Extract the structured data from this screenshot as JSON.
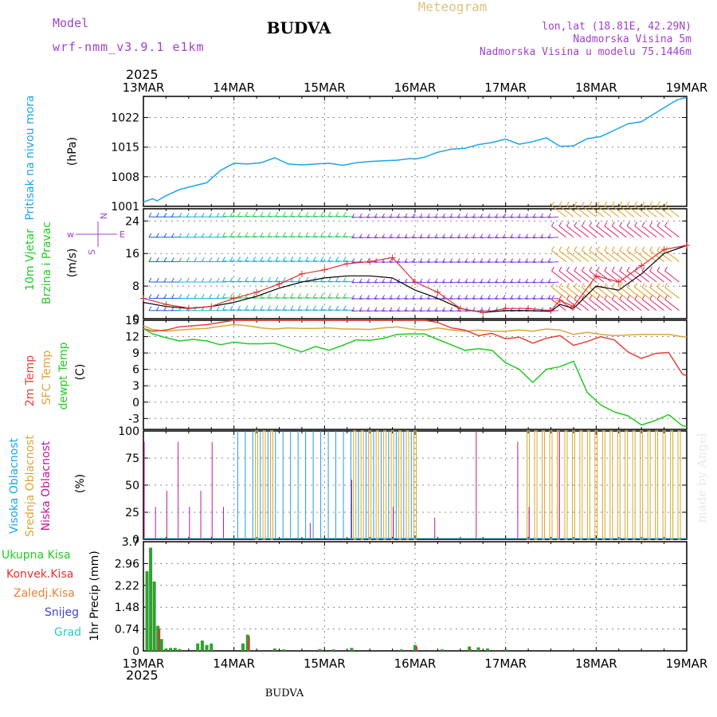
{
  "header": {
    "model_label": "Model",
    "model_name": "wrf-nmm_v3.9.1 e1km",
    "station": "BUDVA",
    "product": "Meteogram",
    "lonlat": "lon,lat (18.81E, 42.29N)",
    "elevation": "Nadmorska Visina 5m",
    "model_elevation": "Nadmorska Visina u modelu 75.1446m"
  },
  "footer": {
    "station": "BUDVA"
  },
  "watermark": "made by Angel",
  "colors": {
    "pressure": "#1aa6e6",
    "temp2m": "#e8403a",
    "sfc": "#dba53a",
    "dewpt": "#22cc22",
    "high_cloud": "#22a0e0",
    "mid_cloud": "#d8a830",
    "low_cloud": "#c0189a",
    "total_precip": "#2fa02f",
    "conv_precip": "#e83030",
    "frz_precip": "#f08030",
    "snow": "#4040e0",
    "grad": "#30c8c8",
    "wind_gust": "#e03030",
    "wind_mean": "#000000",
    "header_purple": "#a040d0",
    "header_gold": "#e0c080"
  },
  "time_axis": {
    "year": "2025",
    "labels": [
      "13MAR",
      "14MAR",
      "15MAR",
      "16MAR",
      "17MAR",
      "18MAR",
      "19MAR"
    ]
  },
  "chart_data": [
    {
      "type": "line",
      "panel": "pressure",
      "ylabel": "Pritisak na nivou mora",
      "unit": "(hPa)",
      "ylim": [
        1001,
        1027
      ],
      "yticks": [
        "1001",
        "1008",
        "1015",
        "1022"
      ],
      "x": [
        0,
        0.1,
        0.15,
        0.25,
        0.4,
        0.55,
        0.7,
        0.85,
        1.0,
        1.15,
        1.3,
        1.45,
        1.6,
        1.75,
        1.9,
        2.05,
        2.2,
        2.35,
        2.5,
        2.65,
        2.8,
        2.95,
        3.0,
        3.1,
        3.25,
        3.4,
        3.55,
        3.7,
        3.85,
        4.0,
        4.15,
        4.3,
        4.45,
        4.6,
        4.75,
        4.9,
        5.05,
        5.2,
        5.35,
        5.5,
        5.65,
        5.8,
        5.9,
        6.0
      ],
      "series": [
        {
          "values": [
            1002,
            1002.8,
            1002.3,
            1003.5,
            1005,
            1005.8,
            1006.6,
            1009.5,
            1011.2,
            1011,
            1011.3,
            1012.5,
            1011,
            1010.8,
            1011,
            1011.2,
            1010.7,
            1011.3,
            1011.6,
            1011.8,
            1011.9,
            1012.3,
            1012.2,
            1012.6,
            1013.8,
            1014.5,
            1014.7,
            1015.6,
            1016.1,
            1016.9,
            1015.7,
            1016.3,
            1017.2,
            1015.2,
            1015.3,
            1017,
            1017.5,
            1019,
            1020.5,
            1021,
            1023,
            1025,
            1026.2,
            1026.8
          ]
        }
      ]
    },
    {
      "type": "line",
      "panel": "wind",
      "ylabel": "10m Vjetar Brzina i Pravac",
      "unit": "(m/s)",
      "compass": "N <--|--> S ; W <--|--> E",
      "ylim": [
        0,
        27
      ],
      "yticks": [
        "0",
        "8",
        "16",
        "24"
      ],
      "x": [
        0,
        0.25,
        0.5,
        0.75,
        1.0,
        1.25,
        1.5,
        1.75,
        2.0,
        2.25,
        2.5,
        2.75,
        3.0,
        3.25,
        3.5,
        3.75,
        4.0,
        4.25,
        4.5,
        4.6,
        4.75,
        5.0,
        5.25,
        5.5,
        5.75,
        6.0
      ],
      "series": [
        {
          "name": "gust",
          "values": [
            5,
            3.5,
            2.6,
            3,
            5,
            6.5,
            8.5,
            11,
            12,
            13.5,
            14,
            15,
            9,
            6.5,
            2.5,
            1.5,
            2.5,
            2.5,
            2,
            4.5,
            3,
            10.5,
            9,
            13,
            17,
            18
          ]
        },
        {
          "name": "mean",
          "values": [
            4,
            3,
            2.5,
            3,
            4,
            5.5,
            7.5,
            9,
            10,
            10.5,
            10.5,
            10,
            7,
            5,
            2.5,
            1.5,
            2,
            2,
            1.8,
            3.5,
            2.5,
            8,
            7,
            11,
            16,
            18
          ]
        }
      ],
      "barb_levels": [
        2,
        5,
        9,
        14,
        20,
        25
      ],
      "barb_colors_by_period": [
        "#2060e0",
        "#20b0d0",
        "#30d060",
        "#8040e0",
        "#e0a020",
        "#e02070"
      ]
    },
    {
      "type": "line",
      "panel": "temperature",
      "ylabel": "2m Temp / SFC Temp / dewpt Temp",
      "unit": "(C)",
      "ylim": [
        -5,
        15
      ],
      "yticks": [
        "-3",
        "0",
        "3",
        "6",
        "9",
        "12",
        "15"
      ],
      "x": [
        0,
        0.1,
        0.25,
        0.4,
        0.55,
        0.7,
        0.85,
        1.0,
        1.15,
        1.3,
        1.45,
        1.6,
        1.75,
        1.9,
        2.05,
        2.2,
        2.35,
        2.5,
        2.65,
        2.8,
        2.95,
        3.1,
        3.25,
        3.4,
        3.55,
        3.7,
        3.85,
        4.0,
        4.15,
        4.3,
        4.45,
        4.6,
        4.75,
        4.9,
        5.05,
        5.2,
        5.35,
        5.5,
        5.65,
        5.8,
        5.95,
        6.0
      ],
      "series": [
        {
          "name": "2m Temp",
          "values": [
            13.5,
            13,
            13.2,
            13.8,
            14,
            14.2,
            14.6,
            15,
            15,
            15,
            15,
            15,
            15,
            15,
            15,
            15,
            15,
            15,
            15,
            15,
            15,
            15,
            14.6,
            13.6,
            13.2,
            12.2,
            12.6,
            11.6,
            11.9,
            10.8,
            11.7,
            12.2,
            10.4,
            11.1,
            12,
            11.4,
            9.2,
            8,
            8.9,
            9.1,
            5.2,
            4.8
          ]
        },
        {
          "name": "SFC Temp",
          "values": [
            14,
            13.3,
            13,
            13.2,
            13.4,
            13.5,
            13.9,
            14.2,
            14,
            13.6,
            13.4,
            13.6,
            13.5,
            13.5,
            13.6,
            13.4,
            13.4,
            13.3,
            13.6,
            13.8,
            13.4,
            13.2,
            13.6,
            13.2,
            13,
            13.2,
            13,
            13,
            13.2,
            13,
            13.4,
            13.2,
            12.4,
            12.8,
            12.4,
            12.2,
            12.3,
            12.4,
            12.4,
            12.4,
            12,
            12
          ]
        },
        {
          "name": "dewpt Temp",
          "values": [
            13.5,
            12.5,
            11.8,
            11.2,
            11.5,
            11.2,
            10.5,
            11,
            10.7,
            10.7,
            10.8,
            10,
            9.2,
            10.2,
            9.5,
            10.4,
            11.4,
            11.3,
            11.7,
            12.4,
            12.5,
            12.5,
            11.5,
            10.5,
            9.5,
            9.8,
            9.5,
            7.2,
            6,
            3.6,
            6,
            6.5,
            7.5,
            1.8,
            -0.5,
            -1.8,
            -2.5,
            -4.2,
            -3.4,
            -2.3,
            -4.3,
            -4.5
          ]
        }
      ]
    },
    {
      "type": "bar",
      "panel": "cloud",
      "ylabel": "Visoka Oblacnost / Srednja Oblacnost / Niska Oblacnost",
      "unit": "(%)",
      "ylim": [
        0,
        100
      ],
      "yticks": [
        "0",
        "25",
        "50",
        "75",
        "100"
      ],
      "x_ranges_days": {
        "high_overcast": [
          [
            1.0,
            3.0
          ]
        ],
        "mid_overcast": [
          [
            1.2,
            1.48
          ],
          [
            2.28,
            3.0
          ],
          [
            4.2,
            6.0
          ]
        ],
        "low_scattered": [
          [
            0,
            0.9
          ],
          [
            4.1,
            4.3
          ]
        ]
      },
      "series": [
        {
          "name": "Visoka Oblacnost",
          "summary": "overcast 100% from 14MAR 06h to 16MAR 00h"
        },
        {
          "name": "Srednja Oblacnost",
          "summary": "intermittent 100% 14MAR, 15MAR-16MAR, 17MAR 06h onward"
        },
        {
          "name": "Niska Oblacnost",
          "summary": "scattered spikes 25-100% on 13MAR and 17MAR"
        }
      ]
    },
    {
      "type": "bar",
      "panel": "precip",
      "ylabel": "1hr Precip",
      "unit": "(mm)",
      "ylim": [
        0,
        3.7
      ],
      "yticks": [
        "0",
        "0.74",
        "1.48",
        "2.22",
        "2.96",
        "3.7"
      ],
      "legend": [
        "Ukupna Kisa",
        "Konvek.Kisa",
        "Zaledj.Kisa",
        "Snijeg",
        "Grad"
      ],
      "x": [
        0.04,
        0.08,
        0.12,
        0.16,
        0.2,
        0.25,
        0.3,
        0.35,
        0.4,
        0.6,
        0.65,
        0.7,
        0.75,
        1.1,
        1.15,
        1.45,
        1.55,
        1.95,
        2.1,
        2.3,
        2.85,
        3.0,
        3.3,
        3.6,
        3.7,
        3.8,
        4.0
      ],
      "series": [
        {
          "name": "Ukupna Kisa",
          "values": [
            2.7,
            3.5,
            2.35,
            0.85,
            0.4,
            0.08,
            0.1,
            0.1,
            0.06,
            0.25,
            0.35,
            0.2,
            0.25,
            0.25,
            0.55,
            0.08,
            0.05,
            0.06,
            0.05,
            0.1,
            0.05,
            0.2,
            0.05,
            0.15,
            0.12,
            0.08,
            0.05
          ]
        },
        {
          "name": "Konvek.Kisa",
          "values": [
            0,
            0,
            0,
            0.75,
            0,
            0,
            0,
            0,
            0,
            0,
            0,
            0,
            0,
            0,
            0.5,
            0,
            0,
            0,
            0,
            0,
            0,
            0.15,
            0,
            0.05,
            0,
            0,
            0
          ]
        }
      ]
    }
  ]
}
